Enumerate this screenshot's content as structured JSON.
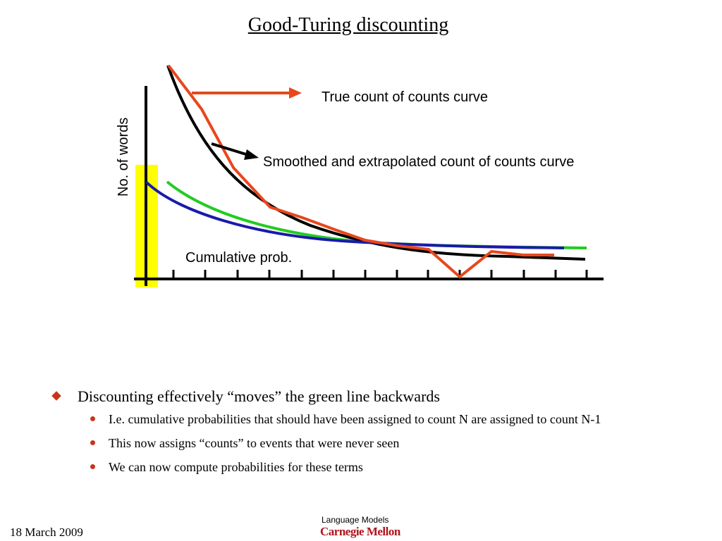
{
  "title": "Good-Turing discounting",
  "figure": {
    "ylabel": "No. of words",
    "true_curve_label": "True count of counts curve",
    "smoothed_curve_label": "Smoothed and extrapolated count of counts curve",
    "cumulative_label": "Cumulative prob.",
    "colors": {
      "true_curve": "#e8471c",
      "smoothed_curve": "#000000",
      "cumulative_green": "#22cc22",
      "cumulative_blue": "#1a1aaa",
      "highlight": "#ffff00"
    }
  },
  "bullets": {
    "main": "Discounting effectively “moves” the green line backwards",
    "sub": [
      "I.e. cumulative probabilities that should have been assigned to count N are assigned to count N-1",
      "This now assigns “counts” to events that were never seen",
      "We can now compute probabilities for these terms"
    ]
  },
  "footer": {
    "date": "18  March 2009",
    "course": "Language Models",
    "logo": "Carnegie Mellon"
  }
}
